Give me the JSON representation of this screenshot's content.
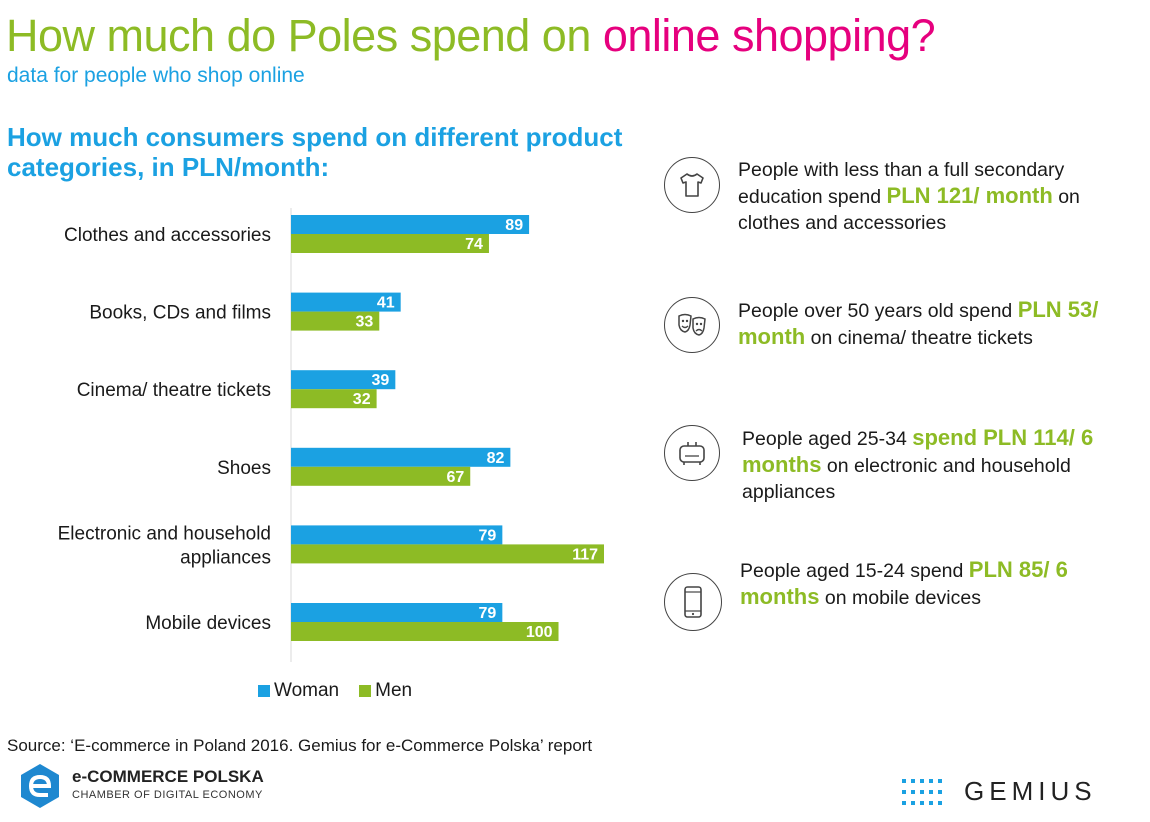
{
  "header": {
    "title_part1": "How much do Poles spend on ",
    "title_part2": "online shopping?",
    "subtitle": "data for people who shop online"
  },
  "chart_title": "How much consumers spend on different product categories, in PLN/month:",
  "colors": {
    "woman": "#1ba1e2",
    "men": "#8dbb25",
    "highlight": "#8dbb25",
    "title_green": "#8dbb25",
    "title_pink": "#e6007e"
  },
  "chart_data": {
    "type": "bar",
    "orientation": "horizontal",
    "categories": [
      "Clothes and accessories",
      "Books, CDs and films",
      "Cinema/ theatre tickets",
      "Shoes",
      "Electronic and household appliances",
      "Mobile devices"
    ],
    "category_lines": [
      [
        "Clothes and accessories"
      ],
      [
        "Books, CDs and films"
      ],
      [
        "Cinema/ theatre tickets"
      ],
      [
        "Shoes"
      ],
      [
        "Electronic and household",
        "appliances"
      ],
      [
        "Mobile devices"
      ]
    ],
    "series": [
      {
        "name": "Woman",
        "values": [
          89,
          41,
          39,
          82,
          79,
          79
        ]
      },
      {
        "name": "Men",
        "values": [
          74,
          33,
          32,
          67,
          117,
          100
        ]
      }
    ],
    "xlim": [
      0,
      120
    ],
    "data_labels": true,
    "legend_position": "bottom",
    "grid": false
  },
  "facts": [
    {
      "icon": "tshirt-icon",
      "before": "People with less than a full secondary education spend ",
      "highlight": "PLN 121/ month",
      "after": " on clothes and accessories"
    },
    {
      "icon": "theatre-masks-icon",
      "before": "People over 50 years old spend ",
      "highlight": "PLN 53/ month",
      "after": " on cinema/ theatre tickets"
    },
    {
      "icon": "toaster-icon",
      "before": "People aged 25-34 ",
      "highlight": "spend PLN 114/ 6 months",
      "after": " on electronic and household appliances"
    },
    {
      "icon": "smartphone-icon",
      "before": "People aged 15-24 spend ",
      "highlight": "PLN 85/ 6 months",
      "after": " on mobile devices"
    }
  ],
  "source": "Source: ‘E-commerce in Poland 2016. Gemius for e-Commerce Polska’ report",
  "logos": {
    "ecp_name": "e-COMMERCE POLSKA",
    "ecp_tagline": "CHAMBER OF DIGITAL ECONOMY",
    "gemius": "GEMIUS"
  }
}
